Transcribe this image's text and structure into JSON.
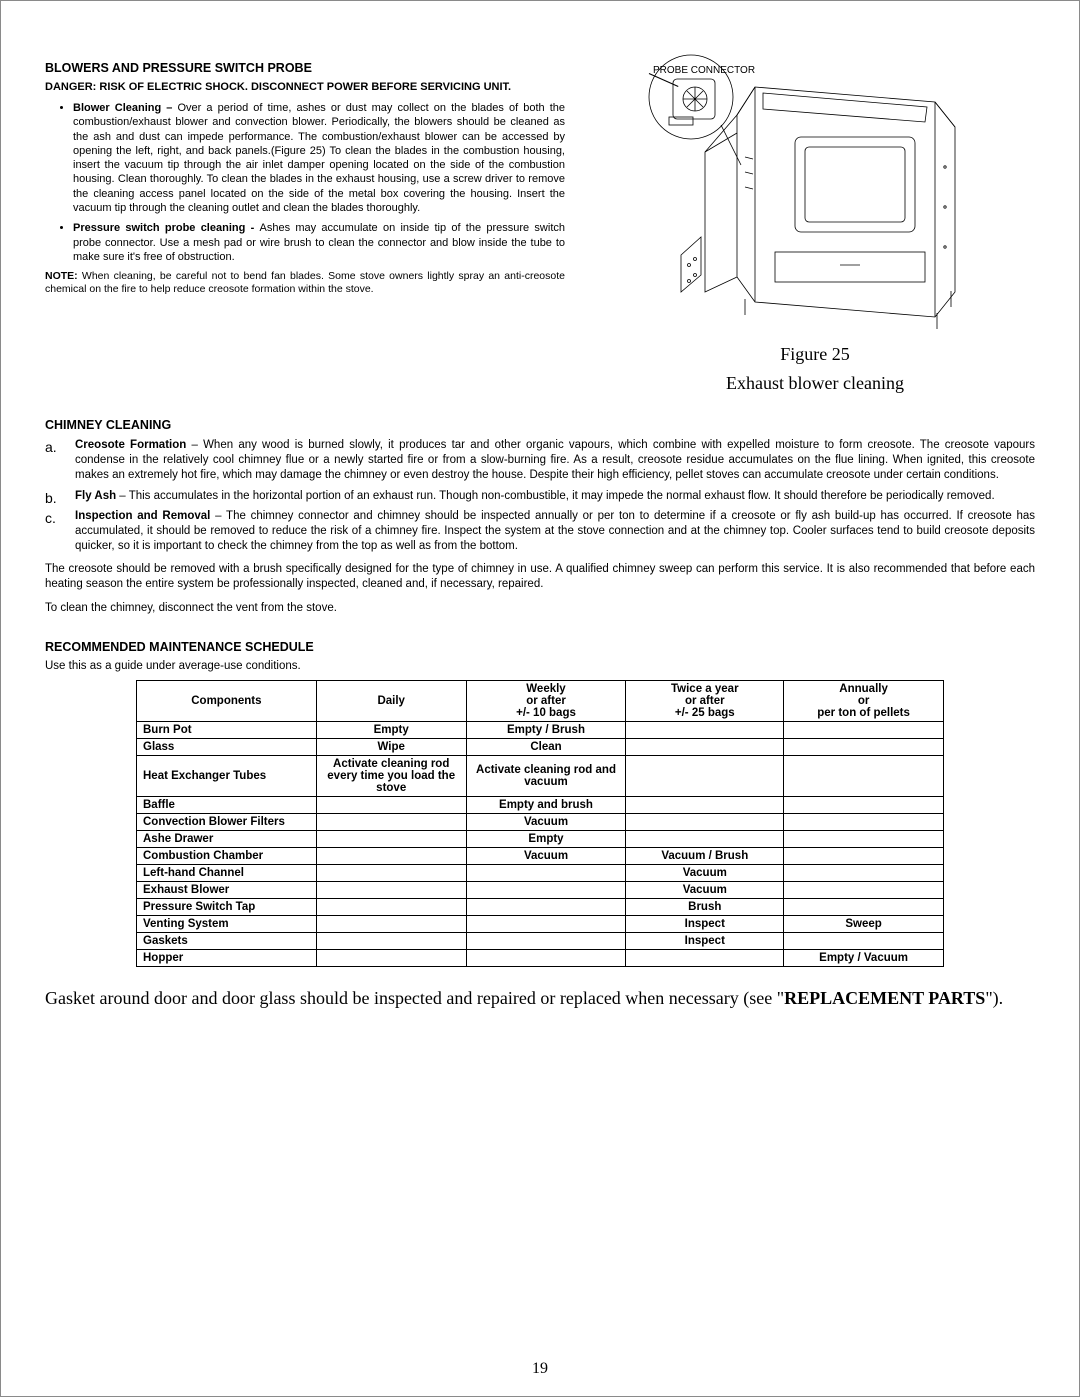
{
  "section1": {
    "title": "BLOWERS AND PRESSURE SWITCH PROBE",
    "danger": "DANGER: RISK OF ELECTRIC SHOCK.   DISCONNECT POWER BEFORE SERVICING UNIT.",
    "items": [
      {
        "label": "Blower Cleaning – ",
        "text": "Over a period of time, ashes or dust may collect on the blades of both the combustion/exhaust blower and convection blower. Periodically, the blowers should be cleaned as the ash and dust can impede performance.  The combustion/exhaust blower can be accessed by opening the left, right, and back panels.(Figure 25) To clean the blades in the combustion housing, insert the vacuum tip through the air inlet damper opening located on the side of the combustion housing. Clean thoroughly. To clean the blades in the exhaust housing, use a screw driver to remove the cleaning access panel located on the side of the metal box covering the housing. Insert the vacuum tip through the cleaning outlet and clean the blades thoroughly."
      },
      {
        "label": "Pressure switch probe cleaning - ",
        "text": "Ashes may accumulate on inside tip of the pressure switch probe connector.  Use a mesh pad or wire brush to clean the connector and blow inside the tube to make sure it's free of obstruction."
      }
    ],
    "note_label": "NOTE:",
    "note_text": " When cleaning, be careful not to bend fan blades.  Some stove owners lightly spray an anti-creosote chemical on the fire to help reduce creosote formation within the stove."
  },
  "figure": {
    "probe_label": "PROBE CONNECTOR",
    "caption_line1": "Figure 25",
    "caption_line2": "Exhaust blower cleaning"
  },
  "section2": {
    "title": "CHIMNEY CLEANING",
    "items": [
      {
        "mark": "a.",
        "label": "Creosote Formation",
        "text": " – When any wood is burned slowly, it produces tar and other organic vapours, which combine with expelled moisture to form creosote. The creosote vapours condense in the relatively cool chimney flue or a newly started fire or from a slow-burning fire. As a result, creosote residue accumulates on the flue lining. When ignited, this creosote makes an extremely hot fire, which may damage the chimney or even destroy the house. Despite their high efficiency, pellet stoves can accumulate creosote under certain conditions."
      },
      {
        "mark": "b.",
        "label": "Fly Ash",
        "text": " – This accumulates in the horizontal portion of an exhaust run. Though non-combustible, it may impede the normal exhaust flow. It should therefore be periodically removed."
      },
      {
        "mark": "c.",
        "label": "Inspection and Removal",
        "text": " – The chimney connector and chimney should be inspected annually or per ton to determine if a creosote or fly ash build-up has occurred. If creosote has accumulated, it should be removed to reduce the risk of a chimney fire. Inspect the system at the stove connection and at the chimney top. Cooler surfaces tend to build creosote deposits quicker, so it is important to check the chimney from the top as well as from the bottom."
      }
    ],
    "p1": "The creosote should be removed with a brush specifically designed for the type of chimney in use. A qualified chimney sweep can perform this service. It is also recommended that before each heating season the entire system be professionally inspected, cleaned and, if necessary, repaired.",
    "p2": "To clean the chimney, disconnect the vent from the stove."
  },
  "section3": {
    "title": "RECOMMENDED MAINTENANCE SCHEDULE",
    "intro": "Use this as a guide under average-use conditions.",
    "headers": [
      "Components",
      "Daily",
      "Weekly\nor after\n+/- 10 bags",
      "Twice a year\nor after\n+/- 25 bags",
      "Annually\nor\nper ton of pellets"
    ],
    "rows": [
      [
        "Burn Pot",
        "Empty",
        "Empty / Brush",
        "",
        ""
      ],
      [
        "Glass",
        "Wipe",
        "Clean",
        "",
        ""
      ],
      [
        "Heat Exchanger Tubes",
        "Activate cleaning rod every time you load the stove",
        "Activate cleaning rod and vacuum",
        "",
        ""
      ],
      [
        "Baffle",
        "",
        "Empty and brush",
        "",
        ""
      ],
      [
        "Convection Blower Filters",
        "",
        "Vacuum",
        "",
        ""
      ],
      [
        "Ashe Drawer",
        "",
        "Empty",
        "",
        ""
      ],
      [
        "Combustion Chamber",
        "",
        "Vacuum",
        "Vacuum / Brush",
        ""
      ],
      [
        "Left-hand Channel",
        "",
        "",
        "Vacuum",
        ""
      ],
      [
        "Exhaust Blower",
        "",
        "",
        "Vacuum",
        ""
      ],
      [
        "Pressure Switch Tap",
        "",
        "",
        "Brush",
        ""
      ],
      [
        "Venting System",
        "",
        "",
        "Inspect",
        "Sweep"
      ],
      [
        "Gaskets",
        "",
        "",
        "Inspect",
        ""
      ],
      [
        "Hopper",
        "",
        "",
        "",
        "Empty / Vacuum"
      ]
    ]
  },
  "final": {
    "before": "Gasket around door and door glass should be inspected and repaired or replaced when necessary (see \"",
    "bold": "REPLACEMENT PARTS",
    "after": "\")."
  },
  "page_number": "19"
}
